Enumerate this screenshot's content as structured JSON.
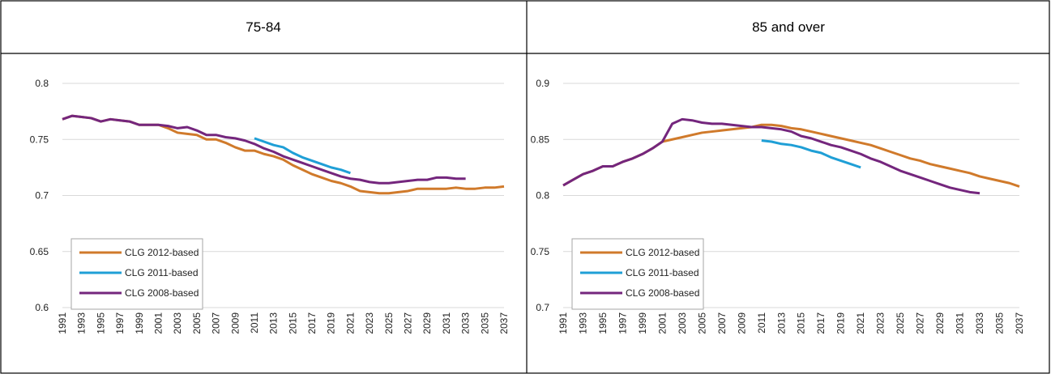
{
  "chart_data": [
    {
      "type": "line",
      "title": "75-84",
      "x": [
        1991,
        1992,
        1993,
        1994,
        1995,
        1996,
        1997,
        1998,
        1999,
        2000,
        2001,
        2002,
        2003,
        2004,
        2005,
        2006,
        2007,
        2008,
        2009,
        2010,
        2011,
        2012,
        2013,
        2014,
        2015,
        2016,
        2017,
        2018,
        2019,
        2020,
        2021,
        2022,
        2023,
        2024,
        2025,
        2026,
        2027,
        2028,
        2029,
        2030,
        2031,
        2032,
        2033,
        2034,
        2035,
        2036,
        2037
      ],
      "xlim": [
        1991,
        2037
      ],
      "xticks": [
        1991,
        1993,
        1995,
        1997,
        1999,
        2001,
        2003,
        2005,
        2007,
        2009,
        2011,
        2013,
        2015,
        2017,
        2019,
        2021,
        2023,
        2025,
        2027,
        2029,
        2031,
        2033,
        2035,
        2037
      ],
      "ylim": [
        0.6,
        0.8
      ],
      "yticks": [
        0.6,
        0.65,
        0.7,
        0.75,
        0.8
      ],
      "grid": true,
      "legend": "lower left",
      "series": [
        {
          "name": "CLG 2012-based",
          "color": "#d07a2b",
          "values": [
            0.768,
            0.771,
            0.77,
            0.769,
            0.766,
            0.768,
            0.767,
            0.766,
            0.763,
            0.763,
            0.763,
            0.76,
            0.756,
            0.755,
            0.754,
            0.75,
            0.75,
            0.747,
            0.743,
            0.74,
            0.74,
            0.737,
            0.735,
            0.732,
            0.727,
            0.723,
            0.719,
            0.716,
            0.713,
            0.711,
            0.708,
            0.704,
            0.703,
            0.702,
            0.702,
            0.703,
            0.704,
            0.706,
            0.706,
            0.706,
            0.706,
            0.707,
            0.706,
            0.706,
            0.707,
            0.707,
            0.708
          ]
        },
        {
          "name": "CLG 2011-based",
          "color": "#1f9fd6",
          "values": [
            null,
            null,
            null,
            null,
            null,
            null,
            null,
            null,
            null,
            null,
            null,
            null,
            null,
            null,
            null,
            null,
            null,
            null,
            null,
            null,
            0.751,
            0.748,
            0.745,
            0.743,
            0.738,
            0.734,
            0.731,
            0.728,
            0.725,
            0.723,
            0.72,
            null,
            null,
            null,
            null,
            null,
            null,
            null,
            null,
            null,
            null,
            null,
            null,
            null,
            null,
            null,
            null
          ]
        },
        {
          "name": "CLG 2008-based",
          "color": "#74267d",
          "values": [
            0.768,
            0.771,
            0.77,
            0.769,
            0.766,
            0.768,
            0.767,
            0.766,
            0.763,
            0.763,
            0.763,
            0.762,
            0.76,
            0.761,
            0.758,
            0.754,
            0.754,
            0.752,
            0.751,
            0.749,
            0.746,
            0.742,
            0.739,
            0.735,
            0.732,
            0.729,
            0.726,
            0.723,
            0.72,
            0.717,
            0.715,
            0.714,
            0.712,
            0.711,
            0.711,
            0.712,
            0.713,
            0.714,
            0.714,
            0.716,
            0.716,
            0.715,
            0.715,
            null,
            null,
            null,
            null
          ]
        }
      ]
    },
    {
      "type": "line",
      "title": "85 and over",
      "x": [
        1991,
        1992,
        1993,
        1994,
        1995,
        1996,
        1997,
        1998,
        1999,
        2000,
        2001,
        2002,
        2003,
        2004,
        2005,
        2006,
        2007,
        2008,
        2009,
        2010,
        2011,
        2012,
        2013,
        2014,
        2015,
        2016,
        2017,
        2018,
        2019,
        2020,
        2021,
        2022,
        2023,
        2024,
        2025,
        2026,
        2027,
        2028,
        2029,
        2030,
        2031,
        2032,
        2033,
        2034,
        2035,
        2036,
        2037
      ],
      "xlim": [
        1991,
        2037
      ],
      "xticks": [
        1991,
        1993,
        1995,
        1997,
        1999,
        2001,
        2003,
        2005,
        2007,
        2009,
        2011,
        2013,
        2015,
        2017,
        2019,
        2021,
        2023,
        2025,
        2027,
        2029,
        2031,
        2033,
        2035,
        2037
      ],
      "ylim": [
        0.7,
        0.9
      ],
      "yticks": [
        0.7,
        0.75,
        0.8,
        0.85,
        0.9
      ],
      "grid": true,
      "legend": "lower left",
      "series": [
        {
          "name": "CLG 2012-based",
          "color": "#d07a2b",
          "values": [
            0.809,
            0.814,
            0.819,
            0.822,
            0.826,
            0.826,
            0.83,
            0.833,
            0.837,
            0.842,
            0.848,
            0.85,
            0.852,
            0.854,
            0.856,
            0.857,
            0.858,
            0.859,
            0.86,
            0.861,
            0.863,
            0.863,
            0.862,
            0.86,
            0.859,
            0.857,
            0.855,
            0.853,
            0.851,
            0.849,
            0.847,
            0.845,
            0.842,
            0.839,
            0.836,
            0.833,
            0.831,
            0.828,
            0.826,
            0.824,
            0.822,
            0.82,
            0.817,
            0.815,
            0.813,
            0.811,
            0.808
          ]
        },
        {
          "name": "CLG 2011-based",
          "color": "#1f9fd6",
          "values": [
            null,
            null,
            null,
            null,
            null,
            null,
            null,
            null,
            null,
            null,
            null,
            null,
            null,
            null,
            null,
            null,
            null,
            null,
            null,
            null,
            0.849,
            0.848,
            0.846,
            0.845,
            0.843,
            0.84,
            0.838,
            0.834,
            0.831,
            0.828,
            0.825,
            null,
            null,
            null,
            null,
            null,
            null,
            null,
            null,
            null,
            null,
            null,
            null,
            null,
            null,
            null,
            null
          ]
        },
        {
          "name": "CLG 2008-based",
          "color": "#74267d",
          "values": [
            0.809,
            0.814,
            0.819,
            0.822,
            0.826,
            0.826,
            0.83,
            0.833,
            0.837,
            0.842,
            0.848,
            0.864,
            0.868,
            0.867,
            0.865,
            0.864,
            0.864,
            0.863,
            0.862,
            0.861,
            0.861,
            0.86,
            0.859,
            0.857,
            0.853,
            0.851,
            0.848,
            0.845,
            0.843,
            0.84,
            0.837,
            0.833,
            0.83,
            0.826,
            0.822,
            0.819,
            0.816,
            0.813,
            0.81,
            0.807,
            0.805,
            0.803,
            0.802,
            null,
            null,
            null,
            null
          ]
        }
      ]
    }
  ]
}
